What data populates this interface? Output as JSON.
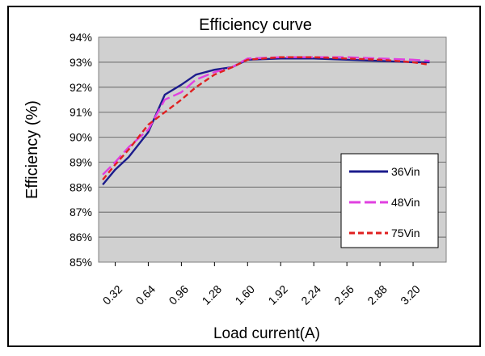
{
  "chart_data": {
    "type": "line",
    "title": "Efficiency curve",
    "xlabel": "Load current(A)",
    "ylabel": "Efficiency (%)",
    "categories": [
      "0.32",
      "0.64",
      "0.96",
      "1.28",
      "1.60",
      "1.92",
      "2.24",
      "2.56",
      "2.88",
      "3.20"
    ],
    "x": [
      0.2,
      0.32,
      0.45,
      0.64,
      0.8,
      0.96,
      1.1,
      1.28,
      1.45,
      1.6,
      1.92,
      2.24,
      2.56,
      2.88,
      3.2,
      3.36
    ],
    "yticks": [
      "85%",
      "86%",
      "87%",
      "88%",
      "89%",
      "90%",
      "91%",
      "92%",
      "93%",
      "94%"
    ],
    "ylim": [
      85,
      94
    ],
    "grid": true,
    "legend_position": "bottom-right",
    "series": [
      {
        "name": "36Vin",
        "color": "#1c1c8c",
        "dash": "solid",
        "values": [
          88.1,
          88.7,
          89.2,
          90.2,
          91.7,
          92.1,
          92.5,
          92.7,
          92.8,
          93.1,
          93.15,
          93.15,
          93.1,
          93.05,
          93.0,
          93.0
        ]
      },
      {
        "name": "48Vin",
        "color": "#e040e0",
        "dash": "long-dash",
        "values": [
          88.5,
          89.0,
          89.6,
          90.3,
          91.5,
          91.8,
          92.3,
          92.6,
          92.8,
          93.15,
          93.2,
          93.2,
          93.2,
          93.15,
          93.1,
          93.05
        ]
      },
      {
        "name": "75Vin",
        "color": "#e02020",
        "dash": "short-dash",
        "values": [
          88.3,
          88.9,
          89.5,
          90.5,
          91.0,
          91.5,
          92.0,
          92.5,
          92.8,
          93.1,
          93.2,
          93.2,
          93.15,
          93.1,
          93.0,
          92.9
        ]
      }
    ]
  }
}
